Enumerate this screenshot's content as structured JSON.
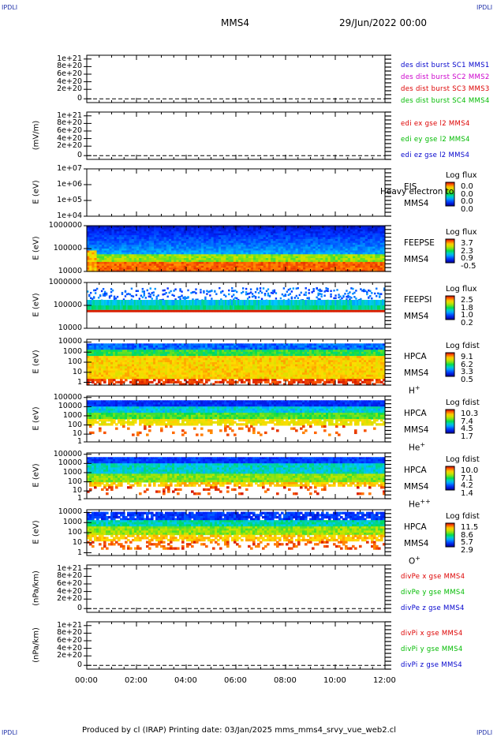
{
  "header": {
    "corner_tl": "IPDLI",
    "corner_tr": "IPDLI",
    "corner_bl": "IPDLI",
    "corner_br": "IPDLI",
    "spacecraft": "MMS4",
    "datetime": "29/Jun/2022 00:00"
  },
  "footer": {
    "text": "Produced by cl (IRAP)   Printing date: 03/Jan/2025   mms_mms4_srvy_vue_web2.cl"
  },
  "chart_data": [
    {
      "type": "line",
      "ylabel": "",
      "yticks": [
        "1e+21",
        "8e+20",
        "6e+20",
        "4e+20",
        "2e+20",
        "0"
      ],
      "series": [
        {
          "name": "des dist burst SC1 MMS1",
          "color": "#0000cc",
          "values": []
        },
        {
          "name": "des dist burst SC2 MMS2",
          "color": "#cc00cc",
          "values": []
        },
        {
          "name": "des dist burst SC3 MMS3",
          "color": "#dd0000",
          "values": []
        },
        {
          "name": "des dist burst SC4 MMS4",
          "color": "#00bb00",
          "values": []
        }
      ]
    },
    {
      "type": "line",
      "ylabel": "(mV/m)",
      "yticks": [
        "1e+21",
        "8e+20",
        "6e+20",
        "4e+20",
        "2e+20",
        "0"
      ],
      "series": [
        {
          "name": "edi ex gse l2 MMS4",
          "color": "#dd0000",
          "values": []
        },
        {
          "name": "edi ey gse l2 MMS4",
          "color": "#00bb00",
          "values": []
        },
        {
          "name": "edi ez gse l2 MMS4",
          "color": "#0000cc",
          "values": []
        }
      ]
    },
    {
      "type": "heatmap",
      "ylabel": "E (eV)",
      "yticks": [
        "1e+07",
        "1e+06",
        "1e+05",
        "1e+04"
      ],
      "instrument": [
        "EIS",
        "MMS4"
      ],
      "overlay_text": "Heavy electron to",
      "colorbar_title": "Log flux",
      "colorbar_values": [
        "0.0",
        "0.0",
        "0.0",
        "0.0"
      ]
    },
    {
      "type": "heatmap",
      "ylabel": "E (eV)",
      "yticks": [
        "1000000",
        "100000",
        "10000"
      ],
      "instrument": [
        "FEEPSE",
        "MMS4"
      ],
      "colorbar_title": "Log flux",
      "colorbar_values": [
        "3.7",
        "2.3",
        "0.9",
        "-0.5"
      ]
    },
    {
      "type": "heatmap",
      "ylabel": "E (eV)",
      "yticks": [
        "1000000",
        "100000",
        "10000"
      ],
      "instrument": [
        "FEEPSI",
        "MMS4"
      ],
      "colorbar_title": "Log flux",
      "colorbar_values": [
        "2.5",
        "1.8",
        "1.0",
        "0.2"
      ]
    },
    {
      "type": "heatmap",
      "ylabel": "E (eV)",
      "yticks": [
        "10000",
        "1000",
        "100",
        "10",
        "1"
      ],
      "instrument": [
        "HPCA",
        "MMS4"
      ],
      "species": "H",
      "species_sup": "+",
      "colorbar_title": "Log fdist",
      "colorbar_values": [
        "9.1",
        "6.2",
        "3.3",
        "0.5"
      ]
    },
    {
      "type": "heatmap",
      "ylabel": "E (eV)",
      "yticks": [
        "100000",
        "10000",
        "1000",
        "100",
        "10",
        "1"
      ],
      "instrument": [
        "HPCA",
        "MMS4"
      ],
      "species": "He",
      "species_sup": "+",
      "colorbar_title": "Log fdist",
      "colorbar_values": [
        "10.3",
        "7.4",
        "4.5",
        "1.7"
      ]
    },
    {
      "type": "heatmap",
      "ylabel": "E (eV)",
      "yticks": [
        "100000",
        "10000",
        "1000",
        "100",
        "10",
        "1"
      ],
      "instrument": [
        "HPCA",
        "MMS4"
      ],
      "species": "He",
      "species_sup": "++",
      "colorbar_title": "Log fdist",
      "colorbar_values": [
        "10.0",
        "7.1",
        "4.2",
        "1.4"
      ]
    },
    {
      "type": "heatmap",
      "ylabel": "E (eV)",
      "yticks": [
        "10000",
        "1000",
        "100",
        "10",
        "1"
      ],
      "instrument": [
        "HPCA",
        "MMS4"
      ],
      "species": "O",
      "species_sup": "+",
      "colorbar_title": "Log fdist",
      "colorbar_values": [
        "11.5",
        "8.6",
        "5.7",
        "2.9"
      ]
    },
    {
      "type": "line",
      "ylabel": "(nPa/km)",
      "yticks": [
        "1e+21",
        "8e+20",
        "6e+20",
        "4e+20",
        "2e+20",
        "0"
      ],
      "series": [
        {
          "name": "divPe x gse MMS4",
          "color": "#dd0000",
          "values": []
        },
        {
          "name": "divPe y gse MMS4",
          "color": "#00bb00",
          "values": []
        },
        {
          "name": "divPe z gse MMS4",
          "color": "#0000cc",
          "values": []
        }
      ]
    },
    {
      "type": "line",
      "ylabel": "(nPa/km)",
      "yticks": [
        "1e+21",
        "8e+20",
        "6e+20",
        "4e+20",
        "2e+20",
        "0"
      ],
      "series": [
        {
          "name": "divPi x gse MMS4",
          "color": "#dd0000",
          "values": []
        },
        {
          "name": "divPi y gse MMS4",
          "color": "#00bb00",
          "values": []
        },
        {
          "name": "divPi z gse MMS4",
          "color": "#0000cc",
          "values": []
        }
      ]
    }
  ],
  "xaxis": {
    "ticks": [
      "00:00",
      "02:00",
      "04:00",
      "06:00",
      "08:00",
      "10:00",
      "12:00"
    ]
  }
}
